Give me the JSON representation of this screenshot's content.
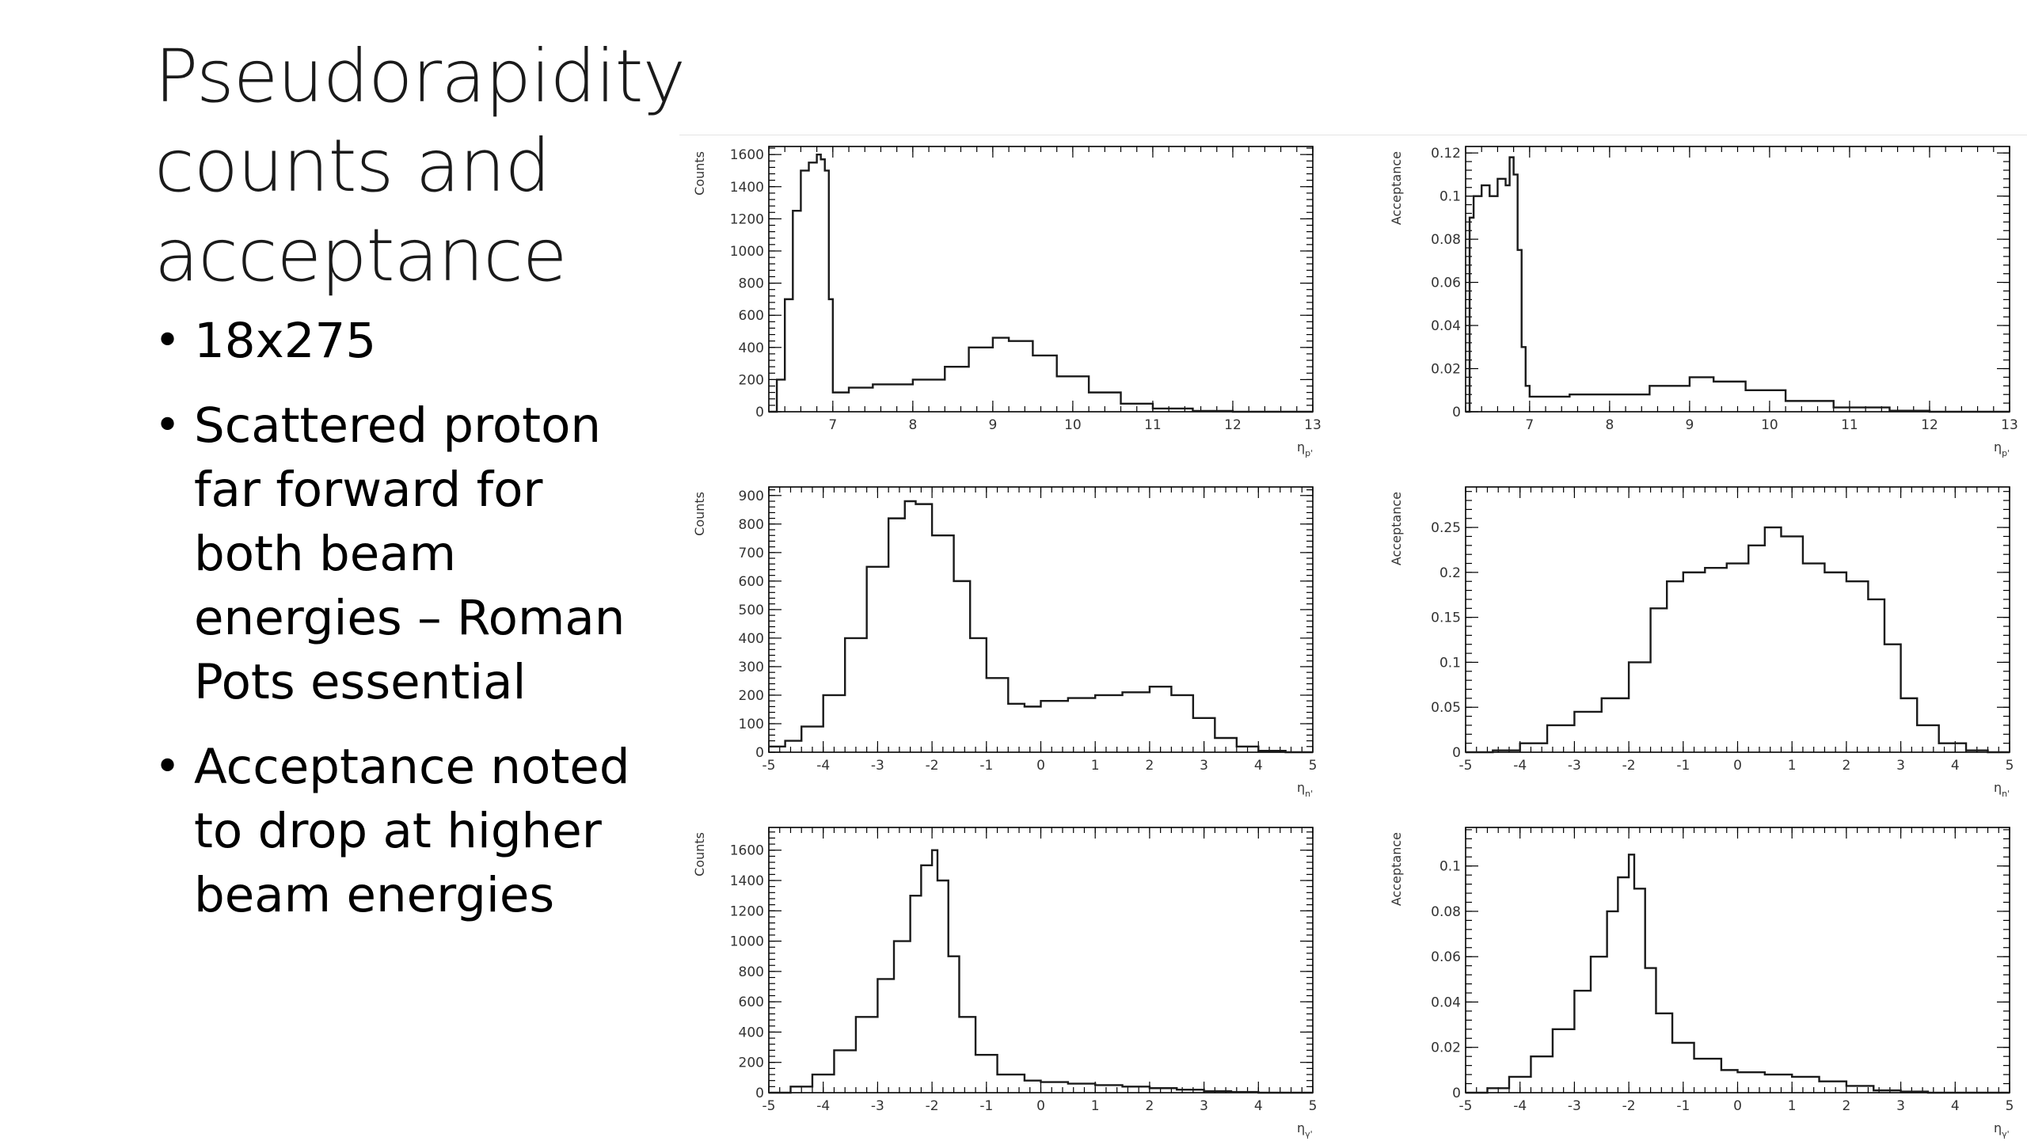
{
  "slide": {
    "title_lines": [
      "Pseudorapidity",
      "counts and",
      "acceptance"
    ],
    "bullets": [
      "18x275",
      "Scattered proton far forward for both beam energies – Roman Pots essential",
      "Acceptance noted to drop at higher beam energies"
    ]
  },
  "chart_data": [
    {
      "type": "step",
      "ylabel": "Counts",
      "xlabel": "η",
      "xlabel_sub": "p'",
      "xlim": [
        6.2,
        13
      ],
      "ylim": [
        0,
        1650
      ],
      "xticks": [
        7,
        8,
        9,
        10,
        11,
        12,
        13
      ],
      "yticks": [
        0,
        200,
        400,
        600,
        800,
        1000,
        1200,
        1400,
        1600
      ],
      "points": [
        [
          6.2,
          0
        ],
        [
          6.3,
          200
        ],
        [
          6.4,
          700
        ],
        [
          6.5,
          1250
        ],
        [
          6.6,
          1500
        ],
        [
          6.7,
          1550
        ],
        [
          6.8,
          1600
        ],
        [
          6.85,
          1570
        ],
        [
          6.9,
          1500
        ],
        [
          6.95,
          700
        ],
        [
          7.0,
          120
        ],
        [
          7.2,
          150
        ],
        [
          7.5,
          170
        ],
        [
          8.0,
          200
        ],
        [
          8.4,
          280
        ],
        [
          8.7,
          400
        ],
        [
          9.0,
          460
        ],
        [
          9.2,
          440
        ],
        [
          9.5,
          350
        ],
        [
          9.8,
          220
        ],
        [
          10.2,
          120
        ],
        [
          10.6,
          50
        ],
        [
          11.0,
          20
        ],
        [
          11.5,
          5
        ],
        [
          12.0,
          0
        ],
        [
          13.0,
          0
        ]
      ]
    },
    {
      "type": "step",
      "ylabel": "Acceptance",
      "xlabel": "η",
      "xlabel_sub": "p'",
      "xlim": [
        6.2,
        13
      ],
      "ylim": [
        0,
        0.123
      ],
      "xticks": [
        7,
        8,
        9,
        10,
        11,
        12,
        13
      ],
      "yticks": [
        0,
        0.02,
        0.04,
        0.06,
        0.08,
        0.1,
        0.12
      ],
      "ytick_labels": [
        "0",
        "0.02",
        "0.04",
        "0.06",
        "0.08",
        "0.1",
        "0.12"
      ],
      "points": [
        [
          6.2,
          0
        ],
        [
          6.25,
          0.09
        ],
        [
          6.3,
          0.1
        ],
        [
          6.4,
          0.105
        ],
        [
          6.5,
          0.1
        ],
        [
          6.6,
          0.108
        ],
        [
          6.7,
          0.105
        ],
        [
          6.75,
          0.118
        ],
        [
          6.8,
          0.11
        ],
        [
          6.85,
          0.075
        ],
        [
          6.9,
          0.03
        ],
        [
          6.95,
          0.012
        ],
        [
          7.0,
          0.007
        ],
        [
          7.5,
          0.008
        ],
        [
          8.0,
          0.008
        ],
        [
          8.5,
          0.012
        ],
        [
          9.0,
          0.016
        ],
        [
          9.3,
          0.014
        ],
        [
          9.7,
          0.01
        ],
        [
          10.2,
          0.005
        ],
        [
          10.8,
          0.002
        ],
        [
          11.5,
          0.0005
        ],
        [
          12.0,
          0
        ],
        [
          13.0,
          0
        ]
      ]
    },
    {
      "type": "step",
      "ylabel": "Counts",
      "xlabel": "η",
      "xlabel_sub": "n'",
      "xlim": [
        -5,
        5
      ],
      "ylim": [
        0,
        930
      ],
      "xticks": [
        -5,
        -4,
        -3,
        -2,
        -1,
        0,
        1,
        2,
        3,
        4,
        5
      ],
      "yticks": [
        0,
        100,
        200,
        300,
        400,
        500,
        600,
        700,
        800,
        900
      ],
      "points": [
        [
          -5,
          20
        ],
        [
          -4.7,
          40
        ],
        [
          -4.4,
          90
        ],
        [
          -4.0,
          200
        ],
        [
          -3.6,
          400
        ],
        [
          -3.2,
          650
        ],
        [
          -2.8,
          820
        ],
        [
          -2.5,
          880
        ],
        [
          -2.3,
          870
        ],
        [
          -2.0,
          760
        ],
        [
          -1.6,
          600
        ],
        [
          -1.3,
          400
        ],
        [
          -1.0,
          260
        ],
        [
          -0.6,
          170
        ],
        [
          -0.3,
          160
        ],
        [
          0.0,
          180
        ],
        [
          0.5,
          190
        ],
        [
          1.0,
          200
        ],
        [
          1.5,
          210
        ],
        [
          2.0,
          230
        ],
        [
          2.4,
          200
        ],
        [
          2.8,
          120
        ],
        [
          3.2,
          50
        ],
        [
          3.6,
          20
        ],
        [
          4.0,
          5
        ],
        [
          4.5,
          0
        ],
        [
          5.0,
          0
        ]
      ]
    },
    {
      "type": "step",
      "ylabel": "Acceptance",
      "xlabel": "η",
      "xlabel_sub": "n'",
      "xlim": [
        -5,
        5
      ],
      "ylim": [
        0,
        0.295
      ],
      "xticks": [
        -5,
        -4,
        -3,
        -2,
        -1,
        0,
        1,
        2,
        3,
        4,
        5
      ],
      "yticks": [
        0,
        0.05,
        0.1,
        0.15,
        0.2,
        0.25
      ],
      "ytick_labels": [
        "0",
        "0.05",
        "0.1",
        "0.15",
        "0.2",
        "0.25"
      ],
      "points": [
        [
          -5,
          0
        ],
        [
          -4.5,
          0.002
        ],
        [
          -4.0,
          0.01
        ],
        [
          -3.5,
          0.03
        ],
        [
          -3.0,
          0.045
        ],
        [
          -2.5,
          0.06
        ],
        [
          -2.0,
          0.1
        ],
        [
          -1.6,
          0.16
        ],
        [
          -1.3,
          0.19
        ],
        [
          -1.0,
          0.2
        ],
        [
          -0.6,
          0.205
        ],
        [
          -0.2,
          0.21
        ],
        [
          0.2,
          0.23
        ],
        [
          0.5,
          0.25
        ],
        [
          0.8,
          0.24
        ],
        [
          1.2,
          0.21
        ],
        [
          1.6,
          0.2
        ],
        [
          2.0,
          0.19
        ],
        [
          2.4,
          0.17
        ],
        [
          2.7,
          0.12
        ],
        [
          3.0,
          0.06
        ],
        [
          3.3,
          0.03
        ],
        [
          3.7,
          0.01
        ],
        [
          4.2,
          0.002
        ],
        [
          4.6,
          0
        ],
        [
          5.0,
          0
        ]
      ]
    },
    {
      "type": "step",
      "ylabel": "Counts",
      "xlabel": "η",
      "xlabel_sub": "γ'",
      "xlim": [
        -5,
        5
      ],
      "ylim": [
        0,
        1750
      ],
      "xticks": [
        -5,
        -4,
        -3,
        -2,
        -1,
        0,
        1,
        2,
        3,
        4,
        5
      ],
      "yticks": [
        0,
        200,
        400,
        600,
        800,
        1000,
        1200,
        1400,
        1600
      ],
      "points": [
        [
          -5,
          0
        ],
        [
          -4.6,
          40
        ],
        [
          -4.2,
          120
        ],
        [
          -3.8,
          280
        ],
        [
          -3.4,
          500
        ],
        [
          -3.0,
          750
        ],
        [
          -2.7,
          1000
        ],
        [
          -2.4,
          1300
        ],
        [
          -2.2,
          1500
        ],
        [
          -2.0,
          1600
        ],
        [
          -1.9,
          1400
        ],
        [
          -1.7,
          900
        ],
        [
          -1.5,
          500
        ],
        [
          -1.2,
          250
        ],
        [
          -0.8,
          120
        ],
        [
          -0.3,
          80
        ],
        [
          0.0,
          70
        ],
        [
          0.5,
          60
        ],
        [
          1.0,
          50
        ],
        [
          1.5,
          40
        ],
        [
          2.0,
          30
        ],
        [
          2.5,
          20
        ],
        [
          3.0,
          10
        ],
        [
          3.5,
          5
        ],
        [
          4.0,
          0
        ],
        [
          5.0,
          0
        ]
      ]
    },
    {
      "type": "step",
      "ylabel": "Acceptance",
      "xlabel": "η",
      "xlabel_sub": "γ'",
      "xlim": [
        -5,
        5
      ],
      "ylim": [
        0,
        0.117
      ],
      "xticks": [
        -5,
        -4,
        -3,
        -2,
        -1,
        0,
        1,
        2,
        3,
        4,
        5
      ],
      "yticks": [
        0,
        0.02,
        0.04,
        0.06,
        0.08,
        0.1
      ],
      "ytick_labels": [
        "0",
        "0.02",
        "0.04",
        "0.06",
        "0.08",
        "0.1"
      ],
      "points": [
        [
          -5,
          0
        ],
        [
          -4.6,
          0.002
        ],
        [
          -4.2,
          0.007
        ],
        [
          -3.8,
          0.016
        ],
        [
          -3.4,
          0.028
        ],
        [
          -3.0,
          0.045
        ],
        [
          -2.7,
          0.06
        ],
        [
          -2.4,
          0.08
        ],
        [
          -2.2,
          0.095
        ],
        [
          -2.0,
          0.105
        ],
        [
          -1.9,
          0.09
        ],
        [
          -1.7,
          0.055
        ],
        [
          -1.5,
          0.035
        ],
        [
          -1.2,
          0.022
        ],
        [
          -0.8,
          0.015
        ],
        [
          -0.3,
          0.01
        ],
        [
          0.0,
          0.009
        ],
        [
          0.5,
          0.008
        ],
        [
          1.0,
          0.007
        ],
        [
          1.5,
          0.005
        ],
        [
          2.0,
          0.003
        ],
        [
          2.5,
          0.001
        ],
        [
          3.0,
          0.0005
        ],
        [
          3.5,
          0
        ],
        [
          5.0,
          0
        ]
      ]
    }
  ]
}
